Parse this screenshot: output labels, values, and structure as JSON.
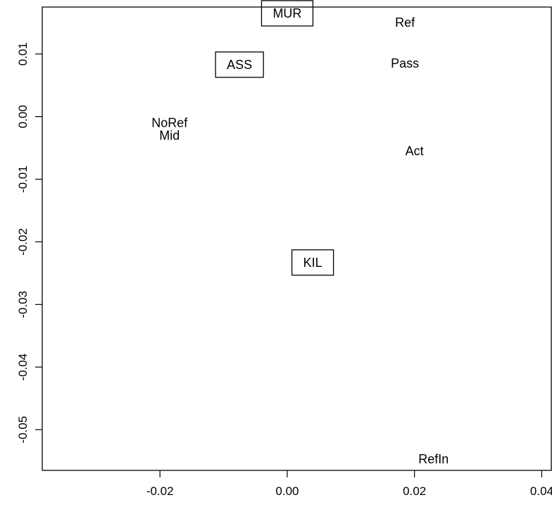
{
  "chart_data": {
    "type": "scatter",
    "title": "",
    "xlabel": "",
    "ylabel": "",
    "xlim": [
      -0.0385,
      0.0415
    ],
    "ylim": [
      -0.0565,
      0.0175
    ],
    "x_ticks": [
      -0.02,
      0.0,
      0.02,
      0.04
    ],
    "x_tick_labels": [
      "-0.02",
      "0.00",
      "0.02",
      "0.04"
    ],
    "y_ticks": [
      0.01,
      0.0,
      -0.01,
      -0.02,
      -0.03,
      -0.04,
      -0.05
    ],
    "y_tick_labels": [
      "0.01",
      "0.00",
      "-0.01",
      "-0.02",
      "-0.03",
      "-0.04",
      "-0.05"
    ],
    "grid": false,
    "legend": "none",
    "points": [
      {
        "label": "MUR",
        "x": 0.0,
        "y": 0.0165,
        "boxed": true
      },
      {
        "label": "ASS",
        "x": -0.0075,
        "y": 0.0083,
        "boxed": true
      },
      {
        "label": "KIL",
        "x": 0.004,
        "y": -0.0233,
        "boxed": true
      },
      {
        "label": "Ref",
        "x": 0.0185,
        "y": 0.015,
        "boxed": false
      },
      {
        "label": "Pass",
        "x": 0.0185,
        "y": 0.0085,
        "boxed": false
      },
      {
        "label": "NoRef",
        "x": -0.0185,
        "y": -0.001,
        "boxed": false
      },
      {
        "label": "Mid",
        "x": -0.0185,
        "y": -0.003,
        "boxed": false
      },
      {
        "label": "Act",
        "x": 0.02,
        "y": -0.0055,
        "boxed": false
      },
      {
        "label": "RefIn",
        "x": 0.023,
        "y": -0.0547,
        "boxed": false
      }
    ]
  }
}
